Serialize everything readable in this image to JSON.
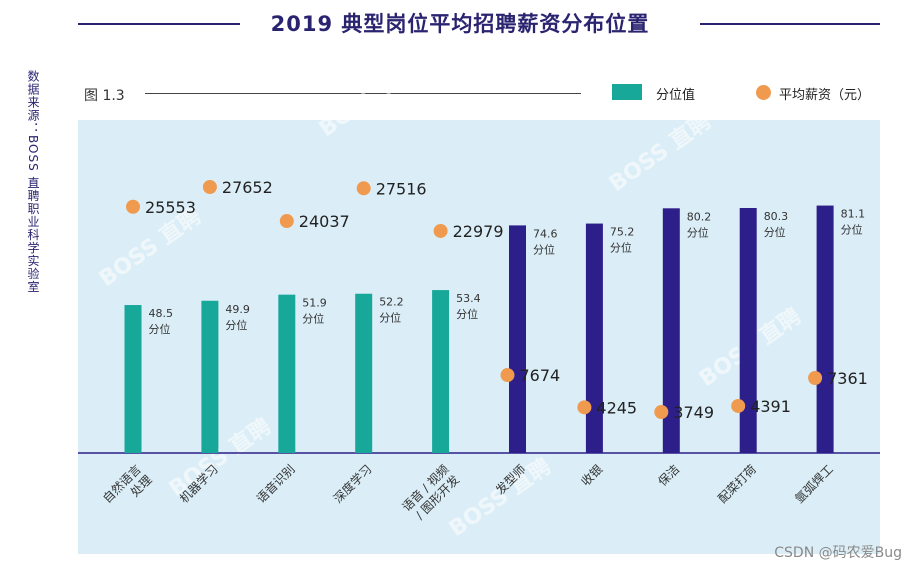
{
  "header": {
    "title": "2019 典型岗位平均招聘薪资分布位置",
    "figure_label": "图 1.3",
    "source": "数据来源：BOSS 直聘职业科学实验室",
    "legend_bar": "分位值",
    "legend_dot": "平均薪资（元）",
    "watermark": "BOSS 直聘",
    "footer": "CSDN @码农爱Bug"
  },
  "colors": {
    "teal": "#18a89a",
    "navy": "#2d1f8a",
    "orange": "#f09a4f",
    "plot_bg": "#dbeef7"
  },
  "chart_data": {
    "type": "bar",
    "title": "2019 典型岗位平均招聘薪资分布位置",
    "categories": [
      [
        "自然语言",
        "处理"
      ],
      [
        "机器学习"
      ],
      [
        "语音识别"
      ],
      [
        "深度学习"
      ],
      [
        "语音 / 视频",
        "/ 图形开发"
      ],
      [
        "发型师"
      ],
      [
        "收银"
      ],
      [
        "保洁"
      ],
      [
        "配菜打荷"
      ],
      [
        "氩弧焊工"
      ]
    ],
    "series": [
      {
        "name": "分位值",
        "values": [
          48.5,
          49.9,
          51.9,
          52.2,
          53.4,
          74.6,
          75.2,
          80.2,
          80.3,
          81.1
        ],
        "colors": [
          "teal",
          "teal",
          "teal",
          "teal",
          "teal",
          "navy",
          "navy",
          "navy",
          "navy",
          "navy"
        ],
        "value_labels": [
          "48.5",
          "49.9",
          "51.9",
          "52.2",
          "53.4",
          "74.6",
          "75.2",
          "80.2",
          "80.3",
          "81.1"
        ],
        "unit_label": "分位"
      },
      {
        "name": "平均薪资（元）",
        "values": [
          25553,
          27652,
          24037,
          27516,
          22979,
          7674,
          4245,
          3749,
          4391,
          7361
        ]
      }
    ],
    "bar_ylim": [
      0,
      100
    ]
  }
}
